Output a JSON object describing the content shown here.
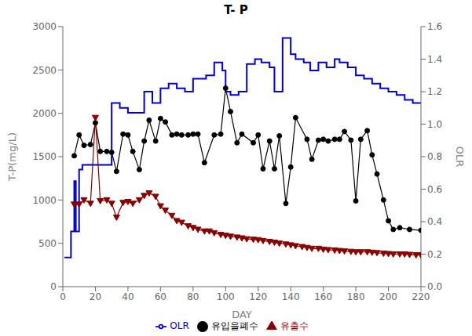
{
  "chart_data": {
    "type": "line",
    "title": "T- P",
    "xlabel": "DAY",
    "ylabel": "T-P(mg/L)",
    "y2label": "OLR",
    "xlim": [
      0,
      220
    ],
    "xticks": [
      0,
      20,
      40,
      60,
      80,
      100,
      120,
      140,
      160,
      180,
      200,
      220
    ],
    "ylim": [
      0,
      3000
    ],
    "yticks": [
      0,
      500,
      1000,
      1500,
      2000,
      2500,
      3000
    ],
    "y2lim": [
      0,
      1.6
    ],
    "y2ticks": [
      {
        "value": 0,
        "label": "0.0"
      },
      0.2,
      0.4,
      0.6,
      0.8,
      {
        "value": 1,
        "label": "1.0"
      },
      1.2,
      1.4,
      1.6
    ],
    "grid": false,
    "legend": "bottom",
    "series": [
      {
        "name": "유입을폐수",
        "color": "#000000",
        "marker": "o",
        "line_style": "solid",
        "x": [
          7,
          10,
          13,
          17,
          20,
          23,
          27,
          30,
          33,
          37,
          40,
          43,
          47,
          50,
          53,
          57,
          60,
          63,
          67,
          70,
          73,
          77,
          80,
          83,
          87,
          93,
          97,
          100,
          103,
          107,
          110,
          117,
          120,
          123,
          127,
          130,
          133,
          137,
          140,
          143,
          150,
          153,
          157,
          160,
          163,
          167,
          170,
          173,
          177,
          180,
          183,
          187,
          190,
          193,
          197,
          200,
          203,
          207,
          213,
          220
        ],
        "values": [
          1510,
          1750,
          1630,
          1640,
          1890,
          1560,
          1560,
          1550,
          1330,
          1760,
          1750,
          1560,
          1350,
          1680,
          1920,
          1680,
          1940,
          1900,
          1750,
          1760,
          1750,
          1750,
          1760,
          1760,
          1430,
          1750,
          1760,
          2290,
          2020,
          1660,
          1760,
          1660,
          1750,
          1360,
          1680,
          1360,
          1740,
          960,
          1380,
          1950,
          1700,
          1470,
          1690,
          1700,
          1680,
          1700,
          1700,
          1790,
          1690,
          990,
          1700,
          1800,
          1520,
          1300,
          1000,
          760,
          660,
          680,
          660,
          650
        ]
      },
      {
        "name": "유출수",
        "color": "#8B0000",
        "marker": "v",
        "line_style": "solid",
        "x": [
          7,
          10,
          13,
          17,
          20,
          23,
          27,
          30,
          33,
          37,
          40,
          43,
          47,
          50,
          53,
          57,
          60,
          63,
          67,
          70,
          73,
          77,
          80,
          83,
          87,
          90,
          93,
          97,
          100,
          103,
          107,
          110,
          113,
          117,
          120,
          123,
          127,
          130,
          133,
          137,
          140,
          143,
          147,
          150,
          153,
          157,
          160,
          163,
          167,
          170,
          173,
          177,
          180,
          183,
          187,
          190,
          193,
          197,
          200,
          203,
          207,
          210,
          213,
          217,
          220
        ],
        "values": [
          950,
          950,
          1000,
          960,
          1950,
          990,
          1000,
          960,
          800,
          970,
          980,
          960,
          1000,
          1050,
          1080,
          1040,
          930,
          880,
          820,
          760,
          740,
          700,
          680,
          660,
          640,
          640,
          620,
          600,
          590,
          580,
          570,
          560,
          550,
          545,
          540,
          530,
          520,
          510,
          500,
          490,
          480,
          470,
          460,
          450,
          440,
          440,
          430,
          425,
          420,
          415,
          410,
          405,
          400,
          400,
          400,
          395,
          390,
          385,
          380,
          375,
          375,
          375,
          370,
          365,
          365
        ]
      },
      {
        "name": "OLR",
        "color": "#0000CC",
        "type": "step",
        "axis": "y2",
        "line_style": "solid",
        "x_start": [
          1,
          5,
          7,
          8,
          10,
          12,
          30,
          35,
          40,
          50,
          55,
          60,
          65,
          70,
          75,
          80,
          88,
          93,
          98,
          100,
          103,
          108,
          113,
          118,
          122,
          127,
          130,
          135,
          140,
          143,
          148,
          152,
          157,
          162,
          167,
          170,
          175,
          180,
          185,
          190,
          195,
          200,
          205,
          210,
          215
        ],
        "x_end": [
          5,
          7,
          8,
          10,
          12,
          30,
          35,
          40,
          50,
          55,
          60,
          65,
          70,
          75,
          80,
          88,
          93,
          98,
          100,
          103,
          108,
          113,
          118,
          122,
          127,
          130,
          135,
          140,
          143,
          148,
          152,
          157,
          162,
          167,
          170,
          175,
          180,
          185,
          190,
          195,
          200,
          205,
          210,
          215,
          220
        ],
        "values": [
          0.18,
          0.34,
          0.65,
          0.34,
          0.72,
          0.75,
          1.13,
          1.1,
          1.07,
          1.2,
          1.13,
          1.22,
          1.25,
          1.22,
          1.2,
          1.28,
          1.3,
          1.38,
          1.33,
          1.2,
          1.18,
          1.2,
          1.37,
          1.4,
          1.38,
          1.35,
          1.2,
          1.53,
          1.43,
          1.4,
          1.38,
          1.33,
          1.38,
          1.35,
          1.4,
          1.38,
          1.35,
          1.3,
          1.28,
          1.25,
          1.22,
          1.2,
          1.18,
          1.15,
          1.13
        ]
      }
    ]
  }
}
